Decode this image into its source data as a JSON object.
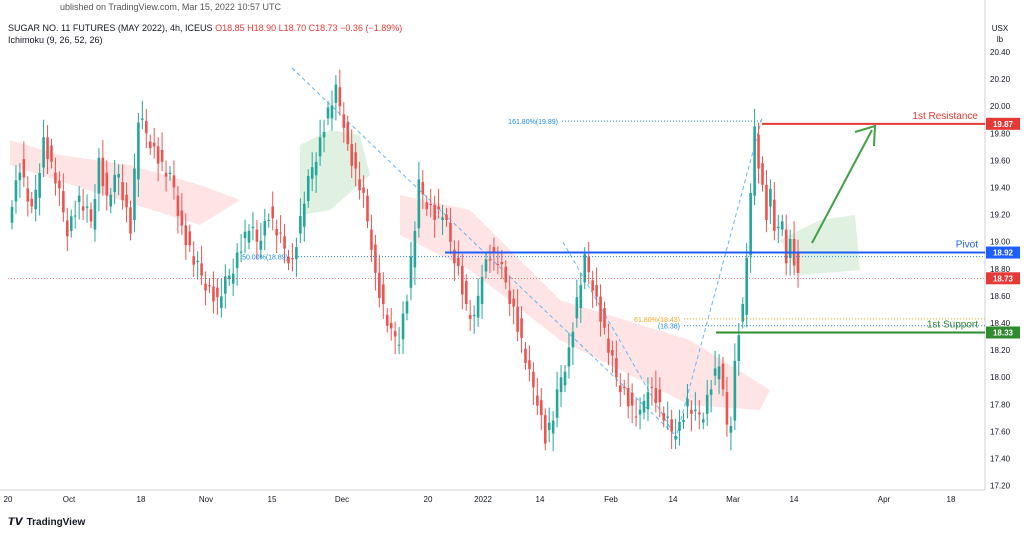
{
  "header": {
    "publish": "ublished on TradingView.com, Mar 15, 2022 10:57 UTC",
    "symbol": "SUGAR NO. 11 FUTURES (MAY 2022), 4h, ICEUS",
    "ohlc": "O18.85  H18.90  L18.70  C18.73  −0.36 (−1.89%)",
    "indicator": "Ichimoku (9, 26, 52, 26)"
  },
  "price_axis": {
    "currency": "USX",
    "unit": "lb"
  },
  "footer": {
    "brand": "TradingView"
  },
  "colors": {
    "up": "#26a69a",
    "down": "#ef5350",
    "resistance": "#e53935",
    "pivot": "#1e5eff",
    "support": "#2e8b2e",
    "arrow": "#43a047",
    "fib": "#1e88e5",
    "fib618": "#f9a825",
    "cloud_green": "#c8e6c9",
    "cloud_red": "#ffcdd2",
    "trend": "#64b5f6"
  },
  "chart_data": {
    "type": "candlestick",
    "y_range": [
      17.1,
      20.5
    ],
    "y_ticks": [
      "20.40",
      "20.20",
      "20.00",
      "19.80",
      "19.60",
      "19.40",
      "19.20",
      "19.00",
      "18.80",
      "18.60",
      "18.40",
      "18.20",
      "18.00",
      "17.80",
      "17.60",
      "17.40",
      "17.20"
    ],
    "x_ticks": [
      "20",
      "Oct",
      "18",
      "Nov",
      "15",
      "Dec",
      "20",
      "2022",
      "14",
      "Feb",
      "14",
      "Mar",
      "14",
      "Apr",
      "18"
    ],
    "price_series": [
      [
        0,
        19.2
      ],
      [
        3,
        19.55
      ],
      [
        6,
        19.2
      ],
      [
        9,
        19.75
      ],
      [
        12,
        19.45
      ],
      [
        15,
        19.1
      ],
      [
        18,
        19.3
      ],
      [
        21,
        19.15
      ],
      [
        23,
        19.6
      ],
      [
        25,
        19.3
      ],
      [
        28,
        19.5
      ],
      [
        31,
        19.1
      ],
      [
        33,
        19.9
      ],
      [
        36,
        19.75
      ],
      [
        39,
        19.55
      ],
      [
        42,
        19.4
      ],
      [
        44,
        19.1
      ],
      [
        47,
        18.85
      ],
      [
        50,
        18.7
      ],
      [
        53,
        18.55
      ],
      [
        56,
        18.75
      ],
      [
        58,
        18.9
      ],
      [
        61,
        19.1
      ],
      [
        63,
        19.0
      ],
      [
        66,
        19.2
      ],
      [
        69,
        19.0
      ],
      [
        72,
        18.85
      ],
      [
        75,
        19.3
      ],
      [
        77,
        19.55
      ],
      [
        79,
        19.75
      ],
      [
        81,
        19.95
      ],
      [
        83,
        20.1
      ],
      [
        85,
        19.9
      ],
      [
        86,
        19.7
      ],
      [
        88,
        19.5
      ],
      [
        90,
        19.3
      ],
      [
        92,
        19.0
      ],
      [
        93,
        18.75
      ],
      [
        95,
        18.5
      ],
      [
        97,
        18.3
      ],
      [
        99,
        18.3
      ],
      [
        101,
        18.6
      ],
      [
        103,
        19.1
      ],
      [
        104,
        19.4
      ],
      [
        106,
        19.3
      ],
      [
        108,
        19.2
      ],
      [
        110,
        19.2
      ],
      [
        112,
        19.0
      ],
      [
        114,
        18.8
      ],
      [
        116,
        18.5
      ],
      [
        118,
        18.4
      ],
      [
        120,
        18.8
      ],
      [
        122,
        18.9
      ],
      [
        124,
        18.85
      ],
      [
        126,
        18.7
      ],
      [
        128,
        18.5
      ],
      [
        130,
        18.25
      ],
      [
        132,
        18.0
      ],
      [
        134,
        17.85
      ],
      [
        136,
        17.55
      ],
      [
        138,
        17.7
      ],
      [
        140,
        18.0
      ],
      [
        142,
        18.2
      ],
      [
        144,
        18.55
      ],
      [
        146,
        18.85
      ],
      [
        148,
        18.7
      ],
      [
        150,
        18.45
      ],
      [
        152,
        18.2
      ],
      [
        154,
        18.0
      ],
      [
        156,
        17.9
      ],
      [
        158,
        17.75
      ],
      [
        160,
        17.7
      ],
      [
        162,
        17.95
      ],
      [
        164,
        17.85
      ],
      [
        166,
        17.7
      ],
      [
        168,
        17.6
      ],
      [
        170,
        17.65
      ],
      [
        172,
        17.8
      ],
      [
        174,
        17.7
      ],
      [
        176,
        17.75
      ],
      [
        178,
        17.95
      ],
      [
        180,
        18.1
      ],
      [
        181,
        17.85
      ],
      [
        182,
        17.65
      ],
      [
        183,
        17.7
      ],
      [
        184,
        18.1
      ],
      [
        185,
        18.35
      ],
      [
        186,
        18.5
      ],
      [
        187,
        18.9
      ],
      [
        188,
        19.3
      ],
      [
        189,
        19.85
      ],
      [
        190,
        19.6
      ],
      [
        191,
        19.4
      ],
      [
        192,
        19.2
      ],
      [
        193,
        19.35
      ],
      [
        194,
        19.1
      ],
      [
        195,
        19.05
      ],
      [
        196,
        19.15
      ],
      [
        197,
        18.9
      ],
      [
        198,
        19.0
      ],
      [
        200,
        18.73
      ]
    ],
    "levels": [
      {
        "name": "1st Resistance",
        "value": 19.87,
        "label": "19.87"
      },
      {
        "name": "Pivot",
        "value": 18.92,
        "label": "18.92"
      },
      {
        "name": "1st Support",
        "value": 18.33,
        "label": "18.33"
      },
      {
        "name": "current",
        "value": 18.73,
        "label": "18.73"
      }
    ],
    "annotations": [
      {
        "text": "161.80%(19.89)",
        "value": 19.89
      },
      {
        "text": "50.00%(18.89)",
        "value": 18.89
      },
      {
        "text": "61.80%(18.43)",
        "value": 18.43
      },
      {
        "text": "(18.38)",
        "value": 18.38
      }
    ]
  }
}
